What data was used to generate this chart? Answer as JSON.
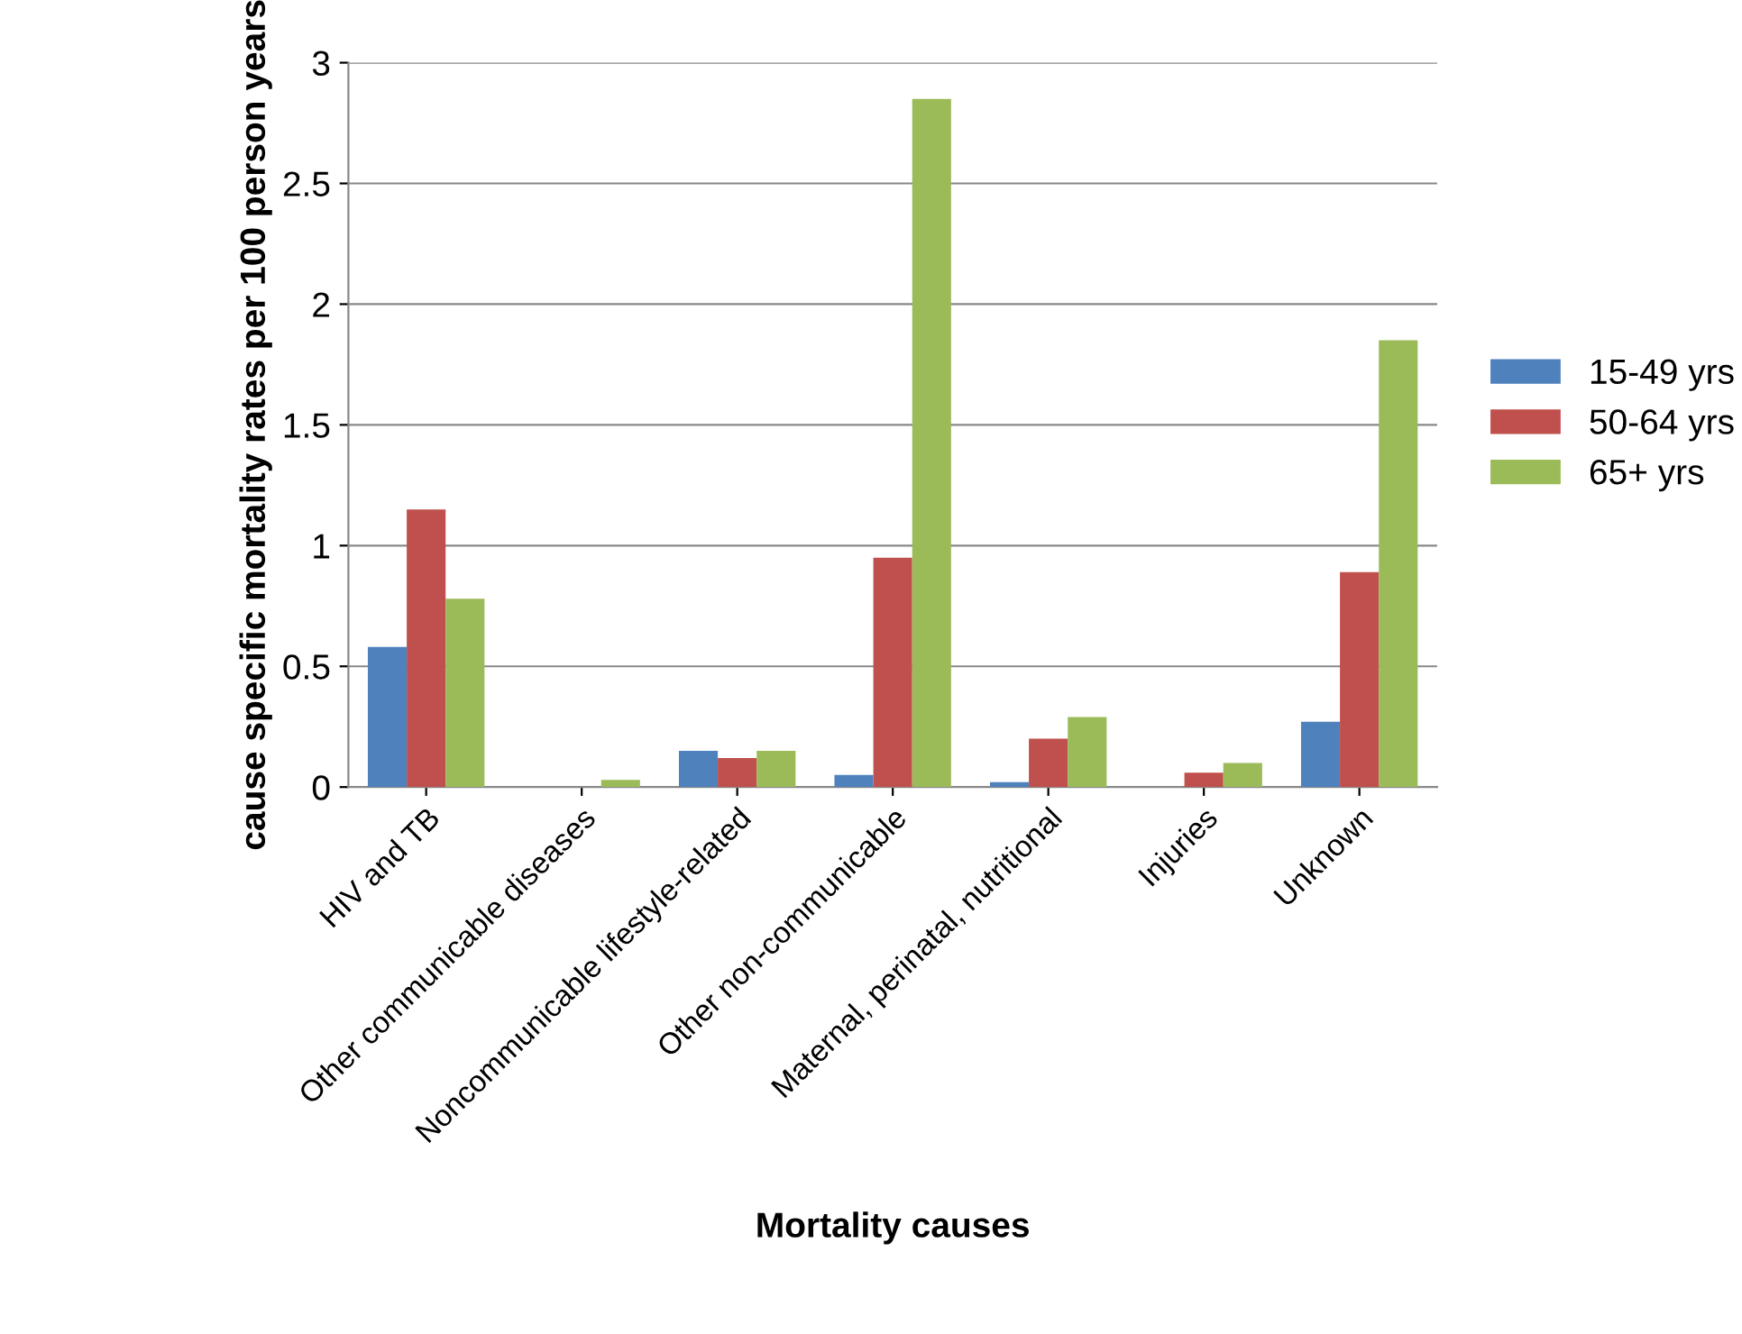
{
  "chart_data": {
    "type": "bar",
    "xlabel": "Mortality causes",
    "ylabel": "cause specific mortality rates per 100 person years",
    "categories": [
      "HIV and TB",
      "Other communicable diseases",
      "Noncommunicable lifestyle-related",
      "Other non-communicable",
      "Maternal, perinatal, nutritional",
      "Injuries",
      "Unknown"
    ],
    "series": [
      {
        "name": "15-49 yrs",
        "color": "#4f81bd",
        "values": [
          0.58,
          null,
          0.15,
          0.05,
          0.02,
          null,
          0.27
        ]
      },
      {
        "name": "50-64 yrs",
        "color": "#c0504d",
        "values": [
          1.15,
          0.0,
          0.12,
          0.95,
          0.2,
          0.06,
          0.89
        ]
      },
      {
        "name": "65+ yrs",
        "color": "#9bbb59",
        "values": [
          0.78,
          0.03,
          0.15,
          2.85,
          0.29,
          0.1,
          1.85
        ]
      }
    ],
    "ylim": [
      0,
      3
    ],
    "yticks": [
      0,
      0.5,
      1,
      1.5,
      2,
      2.5,
      3
    ],
    "grid": "y",
    "legend": "right"
  }
}
